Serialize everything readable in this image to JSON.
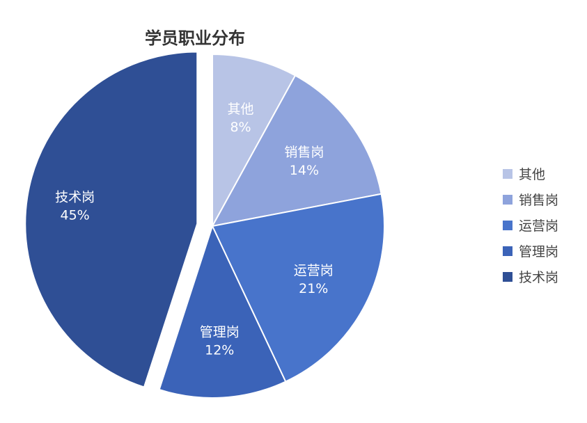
{
  "chart_data": {
    "type": "pie",
    "title": "学员职业分布",
    "slices": [
      {
        "name": "其他",
        "value": 8,
        "label": "8%",
        "color": "#b8c4e6"
      },
      {
        "name": "销售岗",
        "value": 14,
        "label": "14%",
        "color": "#8ea3dc"
      },
      {
        "name": "运营岗",
        "value": 21,
        "label": "21%",
        "color": "#4874cb"
      },
      {
        "name": "管理岗",
        "value": 12,
        "label": "12%",
        "color": "#3b63b8"
      },
      {
        "name": "技术岗",
        "value": 45,
        "label": "45%",
        "color": "#2f4f95"
      }
    ],
    "exploded_slice": "技术岗",
    "legend_position": "right",
    "legend": [
      "其他",
      "销售岗",
      "运营岗",
      "管理岗",
      "技术岗"
    ]
  }
}
